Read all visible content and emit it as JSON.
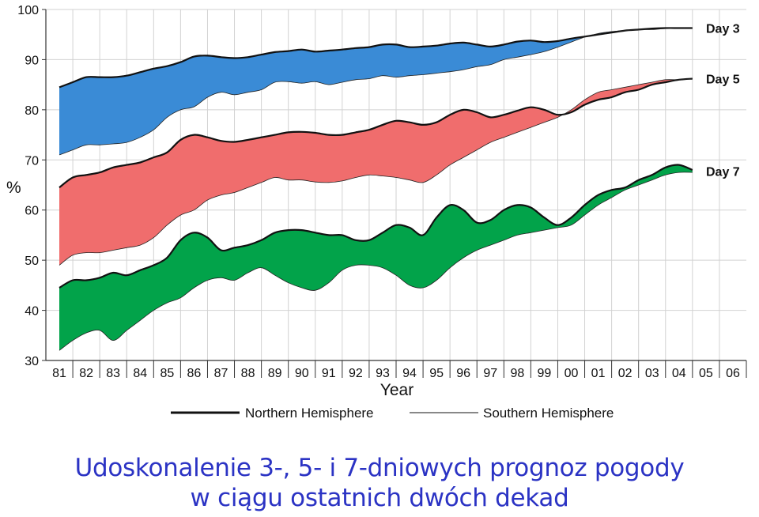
{
  "chart_data": {
    "type": "area",
    "ylabel": "%",
    "xlabel": "Year",
    "ylim": [
      30,
      100
    ],
    "yticks": [
      30,
      40,
      50,
      60,
      70,
      80,
      90,
      100
    ],
    "xlim": [
      1980.5,
      2006.5
    ],
    "categories": [
      "81",
      "82",
      "83",
      "84",
      "85",
      "86",
      "87",
      "88",
      "89",
      "90",
      "91",
      "92",
      "93",
      "94",
      "95",
      "96",
      "97",
      "98",
      "99",
      "00",
      "01",
      "02",
      "03",
      "04",
      "05",
      "06"
    ],
    "grid": true,
    "legend_position": "bottom",
    "legend": [
      {
        "label": "Northern Hemisphere",
        "style": "thick"
      },
      {
        "label": "Southern Hemisphere",
        "style": "thin"
      }
    ],
    "series": [
      {
        "name": "Day 3",
        "color": "#3a8bd6",
        "x": [
          1981.0,
          1981.5,
          1982.0,
          1982.5,
          1983.0,
          1983.5,
          1984.0,
          1984.5,
          1985.0,
          1985.5,
          1986.0,
          1986.5,
          1987.0,
          1987.5,
          1988.0,
          1988.5,
          1989.0,
          1989.5,
          1990.0,
          1990.5,
          1991.0,
          1991.5,
          1992.0,
          1992.5,
          1993.0,
          1993.5,
          1994.0,
          1994.5,
          1995.0,
          1995.5,
          1996.0,
          1996.5,
          1997.0,
          1997.5,
          1998.0,
          1998.5,
          1999.0,
          1999.5,
          2000.0,
          2000.5,
          2001.0,
          2001.5,
          2002.0,
          2002.5,
          2003.0,
          2003.5,
          2004.0,
          2004.5
        ],
        "northern": [
          84.5,
          85.5,
          86.5,
          86.5,
          86.5,
          86.8,
          87.5,
          88.2,
          88.7,
          89.5,
          90.6,
          90.8,
          90.5,
          90.3,
          90.5,
          91.0,
          91.5,
          91.7,
          92.0,
          91.6,
          91.8,
          92.0,
          92.3,
          92.5,
          93.0,
          93.0,
          92.5,
          92.6,
          92.8,
          93.2,
          93.4,
          93.0,
          92.6,
          93.0,
          93.6,
          93.8,
          93.5,
          93.7,
          94.2,
          94.6,
          95.0,
          95.4,
          95.8,
          96.0,
          96.2,
          96.3,
          96.3,
          96.3
        ],
        "southern": [
          71.0,
          72.0,
          73.0,
          73.0,
          73.2,
          73.5,
          74.5,
          76.0,
          78.5,
          80.0,
          80.6,
          82.5,
          83.5,
          83.0,
          83.5,
          84.0,
          85.5,
          85.6,
          85.3,
          85.6,
          85.0,
          85.5,
          86.0,
          86.2,
          86.8,
          86.5,
          86.8,
          87.0,
          87.3,
          87.6,
          88.0,
          88.6,
          89.0,
          90.0,
          90.5,
          91.0,
          91.6,
          92.5,
          93.5,
          94.5,
          95.2,
          95.6,
          95.8,
          96.0,
          96.0,
          96.2,
          96.3,
          96.3
        ]
      },
      {
        "name": "Day 5",
        "color": "#f06d6d",
        "x": [
          1981.0,
          1981.5,
          1982.0,
          1982.5,
          1983.0,
          1983.5,
          1984.0,
          1984.5,
          1985.0,
          1985.5,
          1986.0,
          1986.5,
          1987.0,
          1987.5,
          1988.0,
          1988.5,
          1989.0,
          1989.5,
          1990.0,
          1990.5,
          1991.0,
          1991.5,
          1992.0,
          1992.5,
          1993.0,
          1993.5,
          1994.0,
          1994.5,
          1995.0,
          1995.5,
          1996.0,
          1996.5,
          1997.0,
          1997.5,
          1998.0,
          1998.5,
          1999.0,
          1999.5,
          2000.0,
          2000.5,
          2001.0,
          2001.5,
          2002.0,
          2002.5,
          2003.0,
          2003.5,
          2004.0,
          2004.5
        ],
        "northern": [
          64.5,
          66.5,
          67.0,
          67.5,
          68.5,
          69.0,
          69.5,
          70.5,
          71.5,
          74.0,
          75.0,
          74.5,
          73.8,
          73.6,
          74.0,
          74.5,
          75.0,
          75.5,
          75.6,
          75.4,
          75.0,
          75.0,
          75.5,
          76.0,
          77.0,
          77.8,
          77.5,
          77.0,
          77.5,
          79.0,
          80.0,
          79.5,
          78.5,
          79.0,
          79.8,
          80.5,
          80.0,
          79.0,
          79.5,
          81.0,
          82.0,
          82.5,
          83.5,
          84.0,
          85.0,
          85.5,
          86.0,
          86.2
        ],
        "southern": [
          49.0,
          51.0,
          51.5,
          51.5,
          52.0,
          52.5,
          53.0,
          54.5,
          57.0,
          59.0,
          60.0,
          62.0,
          63.0,
          63.5,
          64.5,
          65.5,
          66.5,
          66.0,
          66.0,
          65.6,
          65.5,
          65.8,
          66.5,
          67.0,
          66.8,
          66.5,
          66.0,
          65.5,
          67.0,
          69.0,
          70.5,
          72.0,
          73.5,
          74.5,
          75.5,
          76.5,
          77.5,
          78.5,
          80.0,
          82.0,
          83.5,
          84.0,
          84.5,
          85.0,
          85.5,
          86.0,
          86.0,
          86.2
        ]
      },
      {
        "name": "Day 7",
        "color": "#02a34a",
        "x": [
          1981.0,
          1981.5,
          1982.0,
          1982.5,
          1983.0,
          1983.5,
          1984.0,
          1984.5,
          1985.0,
          1985.5,
          1986.0,
          1986.5,
          1987.0,
          1987.5,
          1988.0,
          1988.5,
          1989.0,
          1989.5,
          1990.0,
          1990.5,
          1991.0,
          1991.5,
          1992.0,
          1992.5,
          1993.0,
          1993.5,
          1994.0,
          1994.5,
          1995.0,
          1995.5,
          1996.0,
          1996.5,
          1997.0,
          1997.5,
          1998.0,
          1998.5,
          1999.0,
          1999.5,
          2000.0,
          2000.5,
          2001.0,
          2001.5,
          2002.0,
          2002.5,
          2003.0,
          2003.5,
          2004.0,
          2004.5
        ],
        "northern": [
          44.5,
          46.0,
          46.0,
          46.5,
          47.5,
          47.0,
          48.0,
          49.0,
          50.5,
          54.0,
          55.5,
          54.5,
          52.0,
          52.5,
          53.0,
          54.0,
          55.5,
          56.0,
          56.0,
          55.5,
          55.0,
          55.0,
          54.0,
          54.0,
          55.5,
          57.0,
          56.5,
          55.0,
          58.5,
          61.0,
          60.0,
          57.5,
          58.0,
          60.0,
          61.0,
          60.5,
          58.5,
          57.0,
          58.5,
          61.0,
          63.0,
          64.0,
          64.5,
          66.0,
          67.0,
          68.5,
          69.0,
          68.0
        ],
        "southern": [
          32.0,
          34.0,
          35.5,
          36.0,
          34.0,
          36.0,
          38.0,
          40.0,
          41.5,
          42.5,
          44.5,
          46.0,
          46.5,
          46.0,
          47.5,
          48.5,
          47.0,
          45.5,
          44.5,
          44.0,
          45.5,
          48.0,
          49.0,
          49.0,
          48.5,
          47.0,
          45.0,
          44.5,
          46.0,
          48.5,
          50.5,
          52.0,
          53.0,
          54.0,
          55.0,
          55.5,
          56.0,
          56.5,
          57.0,
          59.0,
          61.0,
          62.5,
          64.0,
          65.0,
          66.0,
          67.0,
          67.5,
          67.5
        ]
      }
    ]
  },
  "caption": {
    "line1": "Udoskonalenie  3-, 5- i 7-dniowych prognoz pogody",
    "line2": "w ciągu ostatnich dwóch dekad"
  }
}
